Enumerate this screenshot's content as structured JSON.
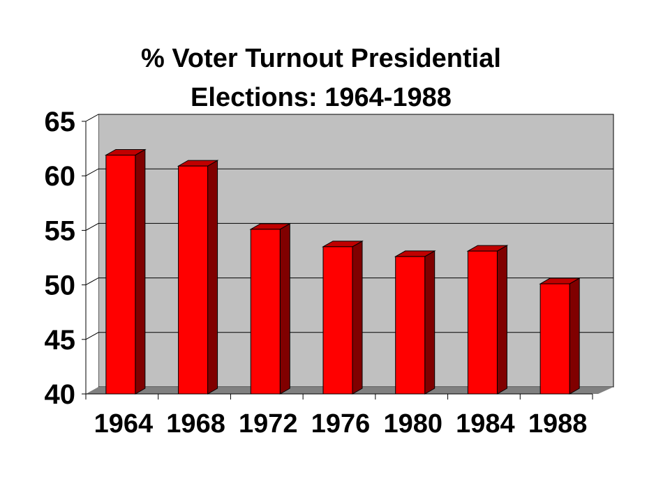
{
  "chart_data": {
    "type": "bar",
    "title_lines": [
      "% Voter Turnout Presidential",
      "Elections: 1964-1988"
    ],
    "xlabel": "",
    "ylabel": "",
    "categories": [
      "1964",
      "1968",
      "1972",
      "1976",
      "1980",
      "1984",
      "1988"
    ],
    "values": [
      61.9,
      60.9,
      55.1,
      53.5,
      52.6,
      53.1,
      50.1
    ],
    "ylim": [
      40,
      65
    ],
    "yticks": [
      "40",
      "45",
      "50",
      "55",
      "60",
      "65"
    ],
    "grid": true,
    "legend": "none",
    "style": "3d-column"
  },
  "colors": {
    "bar_front": "#ff0000",
    "bar_side": "#800000",
    "bar_top": "#c00000",
    "wall": "#c0c0c0",
    "floor": "#808080",
    "gridline": "#000000",
    "background": "#ffffff"
  }
}
